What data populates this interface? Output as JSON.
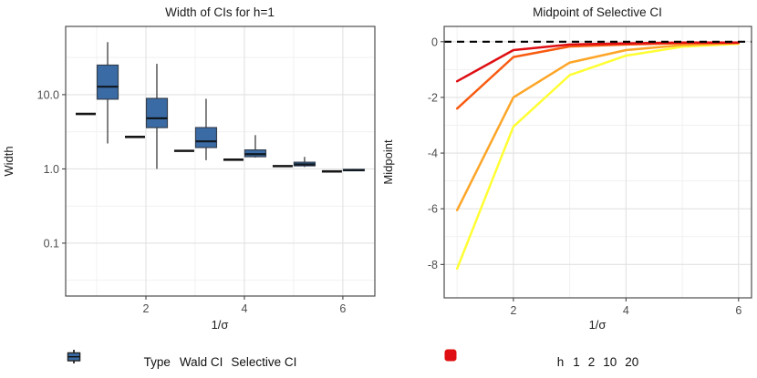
{
  "figure": {
    "background": "#ffffff"
  },
  "chart_data": [
    {
      "type": "boxplot",
      "title": "Width of CIs for h=1",
      "xlabel": "1/σ",
      "ylabel": "Width",
      "y_scale": "log10",
      "grid": true,
      "xlim": [
        0.37,
        6.65
      ],
      "ylim": [
        0.0194,
        83
      ],
      "x_major_ticks": [
        {
          "v": 2,
          "label": "2"
        },
        {
          "v": 4,
          "label": "4"
        },
        {
          "v": 6,
          "label": "6"
        }
      ],
      "x_minor": [
        1,
        3,
        5
      ],
      "y_major_ticks": [
        {
          "v": 10,
          "label": "10.0"
        },
        {
          "v": 1,
          "label": "1.0"
        },
        {
          "v": 0.1,
          "label": "0.1"
        }
      ],
      "y_minor": [
        31.6,
        3.16,
        0.316,
        0.0316
      ],
      "legend": {
        "title": "Type",
        "position": "bottom",
        "items": [
          {
            "label": "Wald CI",
            "color": "#E8100F"
          },
          {
            "label": "Selective CI",
            "color": "#3A6BA5"
          }
        ]
      },
      "groups": [
        {
          "x": 1,
          "wald": 5.5,
          "box": {
            "lo": 2.2,
            "q1": 8.7,
            "med": 12.8,
            "q3": 25.0,
            "hi": 51.0
          }
        },
        {
          "x": 2,
          "wald": 2.7,
          "box": {
            "lo": 1.0,
            "q1": 3.6,
            "med": 4.8,
            "q3": 8.9,
            "hi": 26.0
          }
        },
        {
          "x": 3,
          "wald": 1.75,
          "box": {
            "lo": 1.31,
            "q1": 1.94,
            "med": 2.35,
            "q3": 3.6,
            "hi": 8.8
          }
        },
        {
          "x": 4,
          "wald": 1.33,
          "box": {
            "lo": 1.42,
            "q1": 1.46,
            "med": 1.58,
            "q3": 1.8,
            "hi": 2.85
          }
        },
        {
          "x": 5,
          "wald": 1.09,
          "box": {
            "lo": 1.06,
            "q1": 1.1,
            "med": 1.15,
            "q3": 1.23,
            "hi": 1.45
          }
        },
        {
          "x": 6,
          "wald": 0.925,
          "box": {
            "lo": 0.94,
            "q1": 0.945,
            "med": 0.96,
            "q3": 0.985,
            "hi": 1.0
          }
        }
      ],
      "colors": {
        "box_fill": "#3A6BA5",
        "box_border": "#33404F",
        "whisker": "#4A4A4A",
        "median": "#101820",
        "wald_line": "#161616",
        "grid_major": "#E2E2E2",
        "grid_minor": "#F1F1F1",
        "panel_border": "#4D4D4D",
        "tick_text": "#4D4D4D"
      }
    },
    {
      "type": "line",
      "title": "Midpoint of Selective CI",
      "xlabel": "1/σ",
      "ylabel": "Midpoint",
      "y_scale": "linear",
      "grid": true,
      "xlim": [
        0.77,
        6.23
      ],
      "ylim": [
        -9.2,
        0.55
      ],
      "x_major_ticks": [
        {
          "v": 2,
          "label": "2"
        },
        {
          "v": 4,
          "label": "4"
        },
        {
          "v": 6,
          "label": "6"
        }
      ],
      "x_minor": [
        1,
        3,
        5
      ],
      "y_major_ticks": [
        {
          "v": 0,
          "label": "0"
        },
        {
          "v": -2,
          "label": "-2"
        },
        {
          "v": -4,
          "label": "-4"
        },
        {
          "v": -6,
          "label": "-6"
        },
        {
          "v": -8,
          "label": "-8"
        }
      ],
      "y_minor": [
        -1,
        -3,
        -5,
        -7
      ],
      "hline": {
        "y": 0,
        "style": "dashed",
        "color": "#000000"
      },
      "x": [
        1,
        2,
        3,
        4,
        5,
        6
      ],
      "series": [
        {
          "name": "1",
          "color": "#FFFF33",
          "values": [
            -8.15,
            -3.05,
            -1.2,
            -0.5,
            -0.18,
            -0.07
          ]
        },
        {
          "name": "2",
          "color": "#FDA527",
          "values": [
            -6.05,
            -2.0,
            -0.75,
            -0.3,
            -0.12,
            -0.05
          ]
        },
        {
          "name": "10",
          "color": "#F85A10",
          "values": [
            -2.4,
            -0.55,
            -0.17,
            -0.1,
            -0.05,
            -0.04
          ]
        },
        {
          "name": "20",
          "color": "#DE0E13",
          "values": [
            -1.42,
            -0.3,
            -0.1,
            -0.06,
            -0.03,
            -0.03
          ]
        }
      ],
      "legend": {
        "title": "h",
        "position": "bottom",
        "items": [
          {
            "label": "1",
            "color": "#FFFF33"
          },
          {
            "label": "2",
            "color": "#FDA527"
          },
          {
            "label": "10",
            "color": "#F85A10"
          },
          {
            "label": "20",
            "color": "#DE0E13"
          }
        ]
      },
      "colors": {
        "grid_major": "#E2E2E2",
        "grid_minor": "#F1F1F1",
        "panel_border": "#4D4D4D",
        "tick_text": "#4D4D4D"
      }
    }
  ]
}
